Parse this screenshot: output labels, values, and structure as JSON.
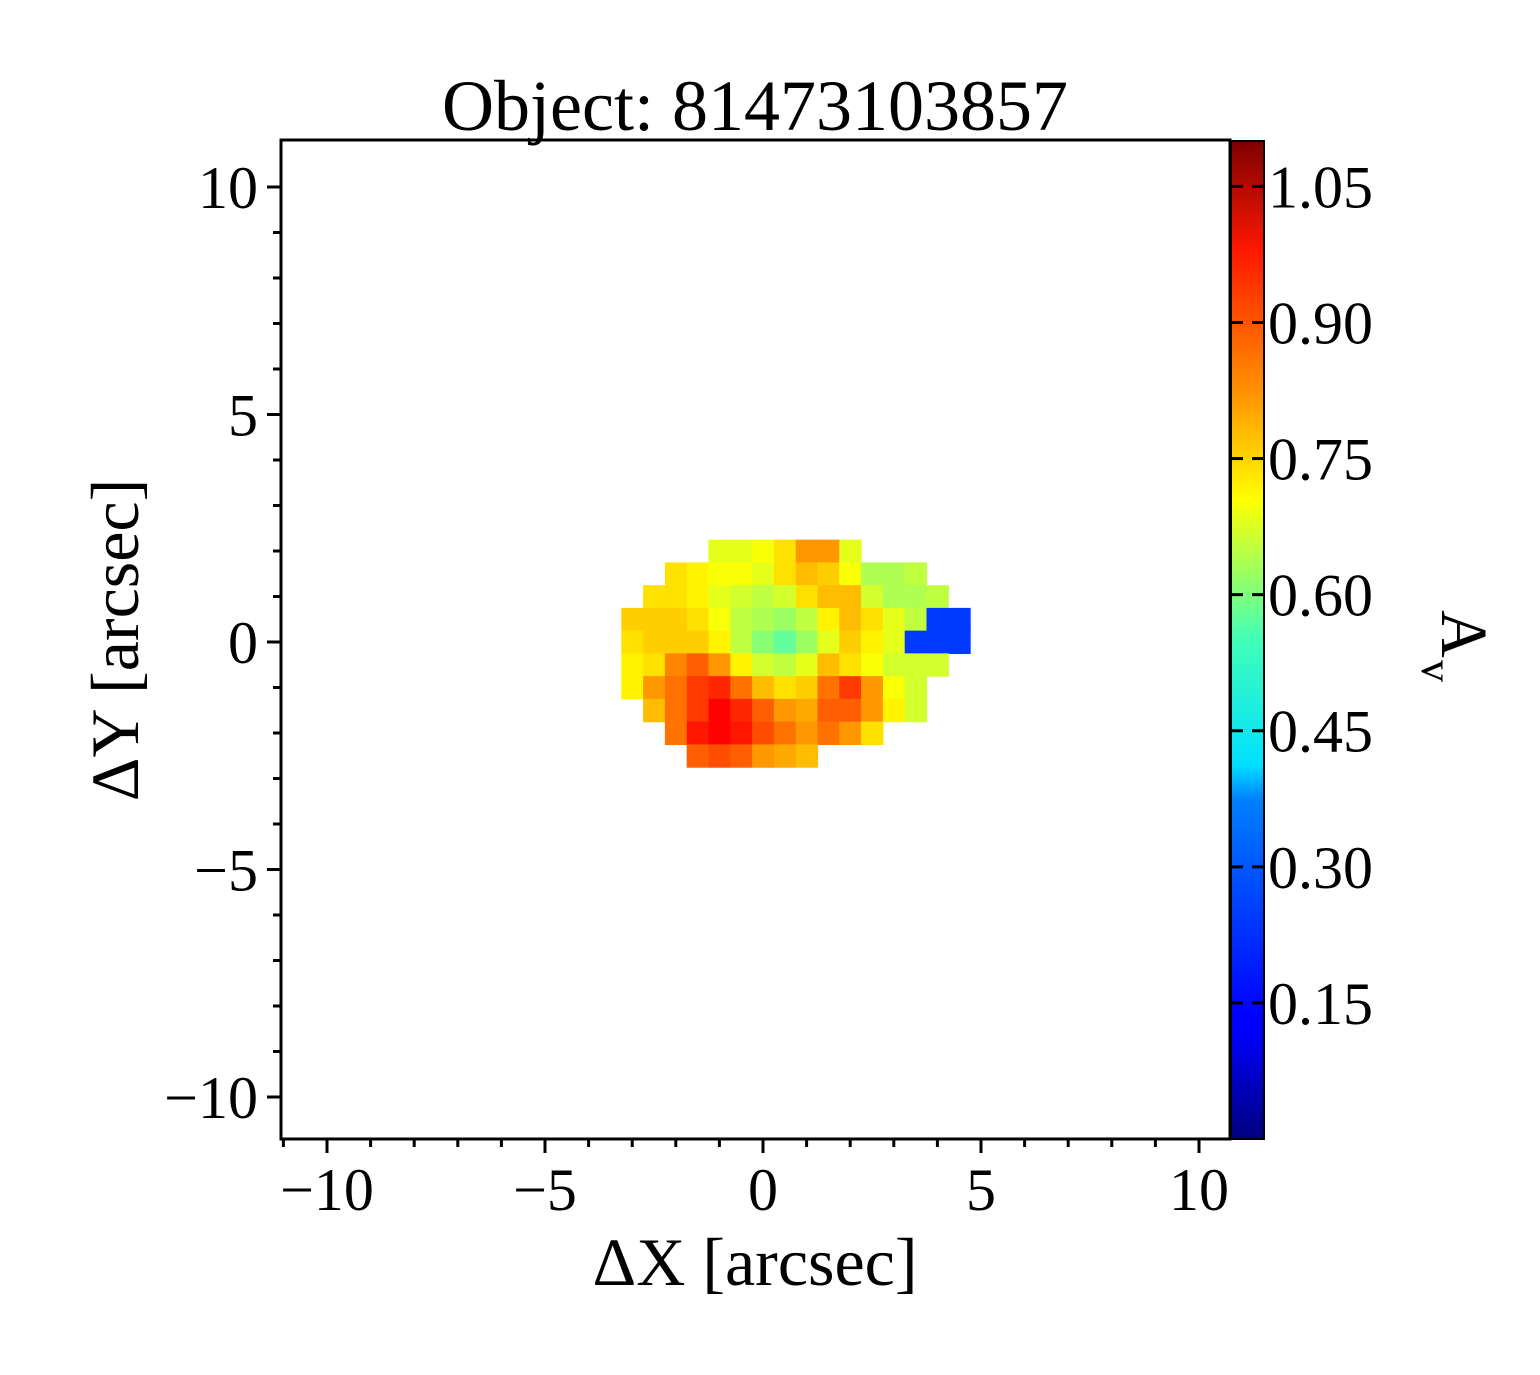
{
  "chart_data": {
    "type": "heatmap",
    "title": "Object: 81473103857",
    "xlabel": "ΔX [arcsec]",
    "ylabel": "ΔY [arcsec]",
    "colorbar_label": "A",
    "colorbar_label_sub": "v",
    "xlim": [
      -10.7,
      10.7
    ],
    "ylim": [
      -10.8,
      11.0
    ],
    "x_ticks": [
      -10,
      -5,
      0,
      5,
      10
    ],
    "x_tick_labels": [
      "−10",
      "−5",
      "0",
      "5",
      "10"
    ],
    "y_ticks": [
      -10,
      -5,
      0,
      5,
      10
    ],
    "y_tick_labels": [
      "−10",
      "−5",
      "0",
      "5",
      "10"
    ],
    "colorbar_range": [
      0.0,
      1.1
    ],
    "colorbar_ticks": [
      0.15,
      0.3,
      0.45,
      0.6,
      0.75,
      0.9,
      1.05
    ],
    "colorbar_tick_labels": [
      "0.15",
      "0.30",
      "0.45",
      "0.60",
      "0.75",
      "0.90",
      "1.05"
    ],
    "colormap": "jet",
    "pixel_size_arcsec": 0.5,
    "grid": false,
    "cells": [
      {
        "dy": 2.0,
        "x_start": -1.0,
        "values": [
          0.66,
          0.66,
          0.68,
          0.72,
          0.8,
          0.8,
          0.66
        ]
      },
      {
        "dy": 1.5,
        "x_start": -2.0,
        "values": [
          0.72,
          0.7,
          0.68,
          0.68,
          0.66,
          0.72,
          0.76,
          0.74,
          0.68,
          0.6,
          0.6,
          0.62
        ]
      },
      {
        "dy": 1.0,
        "x_start": -2.5,
        "values": [
          0.72,
          0.72,
          0.7,
          0.66,
          0.64,
          0.62,
          0.64,
          0.72,
          0.76,
          0.76,
          0.64,
          0.6,
          0.6,
          0.62
        ]
      },
      {
        "dy": 0.5,
        "x_start": -3.0,
        "values": [
          0.74,
          0.74,
          0.74,
          0.72,
          0.68,
          0.62,
          0.6,
          0.58,
          0.62,
          0.7,
          0.76,
          0.72,
          0.66,
          0.62,
          0.2,
          0.2
        ]
      },
      {
        "dy": 0.0,
        "x_start": -3.0,
        "values": [
          0.72,
          0.74,
          0.74,
          0.74,
          0.7,
          0.62,
          0.56,
          0.52,
          0.58,
          0.66,
          0.74,
          0.7,
          0.66,
          0.2,
          0.2,
          0.2
        ]
      },
      {
        "dy": -0.5,
        "x_start": -3.0,
        "values": [
          0.7,
          0.72,
          0.82,
          0.86,
          0.8,
          0.7,
          0.64,
          0.62,
          0.66,
          0.76,
          0.72,
          0.68,
          0.64,
          0.64,
          0.64
        ]
      },
      {
        "dy": -1.0,
        "x_start": -3.0,
        "values": [
          0.7,
          0.8,
          0.84,
          0.9,
          0.92,
          0.84,
          0.76,
          0.72,
          0.74,
          0.84,
          0.9,
          0.8,
          0.68,
          0.64
        ]
      },
      {
        "dy": -1.5,
        "x_start": -2.5,
        "values": [
          0.76,
          0.84,
          0.9,
          0.96,
          0.92,
          0.86,
          0.8,
          0.78,
          0.86,
          0.86,
          0.8,
          0.7,
          0.64
        ]
      },
      {
        "dy": -2.0,
        "x_start": -2.0,
        "values": [
          0.84,
          0.94,
          0.96,
          0.94,
          0.88,
          0.84,
          0.8,
          0.84,
          0.8,
          0.72
        ]
      },
      {
        "dy": -2.5,
        "x_start": -1.5,
        "values": [
          0.86,
          0.88,
          0.86,
          0.8,
          0.78,
          0.76
        ]
      }
    ]
  }
}
